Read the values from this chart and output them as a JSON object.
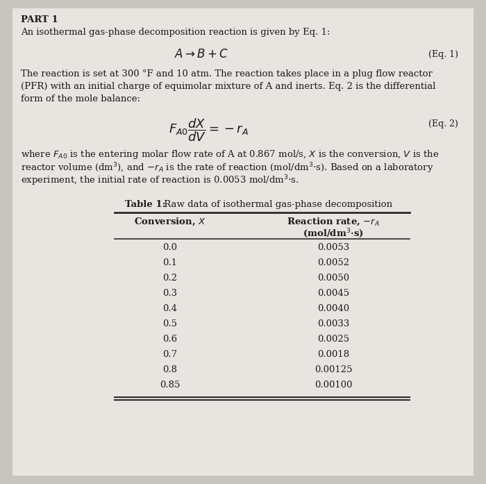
{
  "bg_color": "#c8c5be",
  "paper_color": "#e8e5e0",
  "part_label": "PART 1",
  "intro_line": "An isothermal gas-phase decomposition reaction is given by Eq. 1:",
  "eq1_label": "(Eq. 1)",
  "eq2_label": "(Eq. 2)",
  "para1_lines": [
    "The reaction is set at 300 °F and 10 atm. The reaction takes place in a plug flow reactor",
    "(PFR) with an initial charge of equimolar mixture of A and inerts. Eq. 2 is the differential",
    "form of the mole balance:"
  ],
  "para2_lines": [
    "where $F_{A0}$ is the entering molar flow rate of A at 0.867 mol/s, $X$ is the conversion, $V$ is the",
    "reactor volume (dm$^3$), and $-r_A$ is the rate of reaction (mol/dm$^3$·s). Based on a laboratory",
    "experiment, the initial rate of reaction is 0.0053 mol/dm$^3$·s."
  ],
  "table_title_bold": "Table 1:",
  "table_title_normal": " Raw data of isothermal gas-phase decomposition",
  "col1_header": "Conversion, $X$",
  "col2_header_line1": "Reaction rate, $-r_A$",
  "col2_header_line2": "(mol/dm$^3$·s)",
  "conversion": [
    "0.0",
    "0.1",
    "0.2",
    "0.3",
    "0.4",
    "0.5",
    "0.6",
    "0.7",
    "0.8",
    "0.85"
  ],
  "reaction_rate": [
    "0.0053",
    "0.0052",
    "0.0050",
    "0.0045",
    "0.0040",
    "0.0033",
    "0.0025",
    "0.0018",
    "0.00125",
    "0.00100"
  ],
  "text_color": "#1a1a1a",
  "line_color": "#2a2a2a"
}
